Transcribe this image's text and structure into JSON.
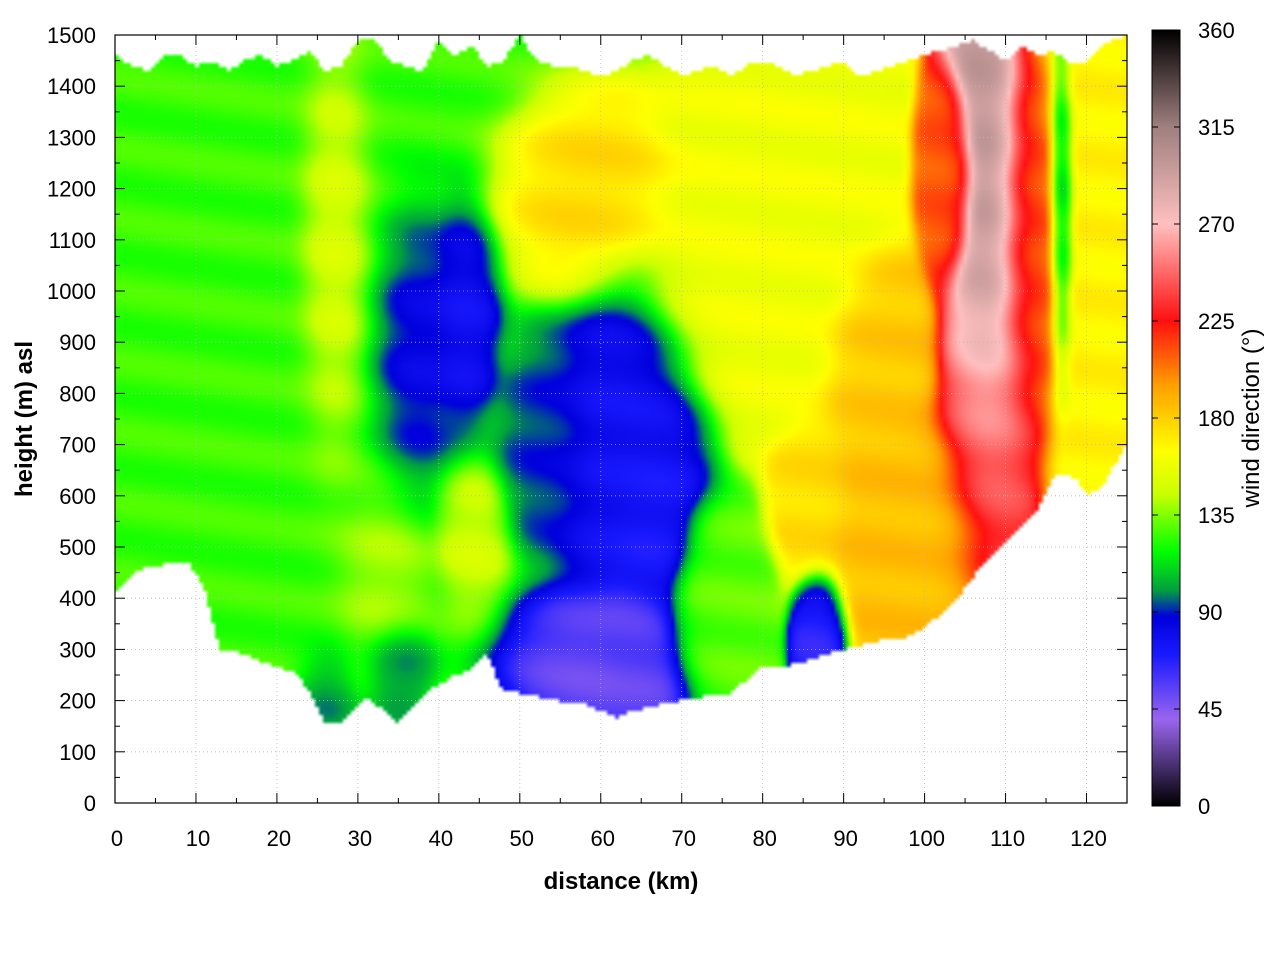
{
  "chart_data": {
    "type": "heatmap",
    "title": "",
    "xlabel": "distance (km)",
    "ylabel": "height (m) asl",
    "xlim": [
      0,
      125
    ],
    "ylim": [
      0,
      1500
    ],
    "xticks": [
      0,
      10,
      20,
      30,
      40,
      50,
      60,
      70,
      80,
      90,
      100,
      110,
      120
    ],
    "yticks": [
      0,
      100,
      200,
      300,
      400,
      500,
      600,
      700,
      800,
      900,
      1000,
      1100,
      1200,
      1300,
      1400,
      1500
    ],
    "grid": true,
    "colorbar": {
      "label": "wind direction (°)",
      "range": [
        0,
        360
      ],
      "ticks": [
        0,
        45,
        90,
        135,
        180,
        225,
        270,
        315,
        360
      ],
      "stops": [
        {
          "value": 0,
          "color": "#000000"
        },
        {
          "value": 40,
          "color": "#9a66ee"
        },
        {
          "value": 70,
          "color": "#1a1aff"
        },
        {
          "value": 88,
          "color": "#0000dd"
        },
        {
          "value": 100,
          "color": "#00a040"
        },
        {
          "value": 118,
          "color": "#00ff00"
        },
        {
          "value": 145,
          "color": "#ccff00"
        },
        {
          "value": 165,
          "color": "#ffff00"
        },
        {
          "value": 195,
          "color": "#ffa000"
        },
        {
          "value": 225,
          "color": "#ff1010"
        },
        {
          "value": 270,
          "color": "#ffc0c0"
        },
        {
          "value": 315,
          "color": "#a08080"
        },
        {
          "value": 360,
          "color": "#000000"
        }
      ]
    },
    "terrain": {
      "x": [
        0,
        3,
        6,
        9,
        11,
        13,
        16,
        18,
        20,
        22,
        24,
        26,
        28,
        31,
        33,
        35,
        37,
        39,
        42,
        44,
        46,
        48,
        50,
        54,
        58,
        62,
        64,
        66,
        68,
        72,
        76,
        80,
        84,
        88,
        90,
        94,
        98,
        100,
        104,
        108,
        112,
        114,
        116,
        118,
        119,
        120,
        122,
        125
      ],
      "y": [
        410,
        455,
        465,
        470,
        420,
        300,
        290,
        275,
        265,
        258,
        220,
        155,
        160,
        205,
        185,
        155,
        190,
        220,
        250,
        260,
        290,
        215,
        215,
        200,
        195,
        165,
        180,
        185,
        195,
        205,
        215,
        265,
        270,
        290,
        300,
        315,
        325,
        340,
        400,
        480,
        540,
        570,
        640,
        640,
        630,
        600,
        620,
        700
      ]
    },
    "top_boundary": {
      "x": [
        0,
        2,
        4,
        6,
        8,
        10,
        12,
        14,
        16,
        18,
        20,
        22,
        24,
        26,
        28,
        30,
        32,
        34,
        36,
        38,
        40,
        42,
        44,
        46,
        48,
        50,
        52,
        54,
        56,
        58,
        60,
        62,
        64,
        66,
        68,
        70,
        72,
        74,
        76,
        78,
        80,
        82,
        84,
        86,
        88,
        90,
        92,
        94,
        96,
        98,
        100,
        102,
        104,
        106,
        108,
        110,
        112,
        114,
        116,
        118,
        120,
        122,
        125
      ],
      "y": [
        1460,
        1440,
        1430,
        1460,
        1460,
        1440,
        1450,
        1430,
        1450,
        1460,
        1440,
        1450,
        1470,
        1430,
        1440,
        1490,
        1490,
        1450,
        1440,
        1430,
        1490,
        1460,
        1480,
        1440,
        1450,
        1500,
        1450,
        1440,
        1440,
        1430,
        1420,
        1430,
        1450,
        1460,
        1440,
        1420,
        1430,
        1440,
        1420,
        1440,
        1450,
        1440,
        1420,
        1430,
        1440,
        1450,
        1420,
        1430,
        1440,
        1450,
        1460,
        1470,
        1480,
        1490,
        1470,
        1450,
        1480,
        1460,
        1470,
        1440,
        1450,
        1480,
        1500
      ]
    },
    "field_features": [
      {
        "x": 0,
        "y": 900,
        "sx": 30,
        "sy": 2000,
        "value": 125
      },
      {
        "x": 37,
        "y": 880,
        "sx": 4,
        "sy": 190,
        "value": 75
      },
      {
        "x": 43,
        "y": 940,
        "sx": 3,
        "sy": 150,
        "value": 70
      },
      {
        "x": 35,
        "y": 250,
        "sx": 3,
        "sy": 80,
        "value": 90
      },
      {
        "x": 26,
        "y": 200,
        "sx": 3,
        "sy": 70,
        "value": 90
      },
      {
        "x": 58,
        "y": 270,
        "sx": 7,
        "sy": 90,
        "value": 50
      },
      {
        "x": 63,
        "y": 320,
        "sx": 3,
        "sy": 80,
        "value": 55
      },
      {
        "x": 63,
        "y": 700,
        "sx": 6,
        "sy": 220,
        "value": 75
      },
      {
        "x": 66,
        "y": 550,
        "sx": 3,
        "sy": 120,
        "value": 70
      },
      {
        "x": 53,
        "y": 700,
        "sx": 4,
        "sy": 140,
        "value": 90
      },
      {
        "x": 87,
        "y": 340,
        "sx": 2,
        "sy": 70,
        "value": 65
      },
      {
        "x": 58,
        "y": 1180,
        "sx": 7,
        "sy": 120,
        "value": 178
      },
      {
        "x": 95,
        "y": 870,
        "sx": 4,
        "sy": 110,
        "value": 182
      },
      {
        "x": 98,
        "y": 530,
        "sx": 7,
        "sy": 150,
        "value": 185
      },
      {
        "x": 86,
        "y": 580,
        "sx": 3,
        "sy": 90,
        "value": 175
      },
      {
        "x": 108,
        "y": 730,
        "sx": 4,
        "sy": 220,
        "value": 240
      },
      {
        "x": 108,
        "y": 1000,
        "sx": 3,
        "sy": 260,
        "value": 300
      },
      {
        "x": 113,
        "y": 1020,
        "sx": 3,
        "sy": 220,
        "value": 215
      },
      {
        "x": 103,
        "y": 1180,
        "sx": 2,
        "sy": 110,
        "value": 210
      },
      {
        "x": 117,
        "y": 1100,
        "sx": 1,
        "sy": 200,
        "value": 90
      },
      {
        "x": 121,
        "y": 900,
        "sx": 4,
        "sy": 400,
        "value": 168
      },
      {
        "x": 27,
        "y": 1100,
        "sx": 3,
        "sy": 300,
        "value": 160
      },
      {
        "x": 33,
        "y": 440,
        "sx": 4,
        "sy": 120,
        "value": 145
      },
      {
        "x": 44,
        "y": 520,
        "sx": 3,
        "sy": 100,
        "value": 150
      },
      {
        "x": 78,
        "y": 1080,
        "sx": 9,
        "sy": 200,
        "value": 160
      },
      {
        "x": 75,
        "y": 400,
        "sx": 4,
        "sy": 120,
        "value": 130
      }
    ]
  }
}
